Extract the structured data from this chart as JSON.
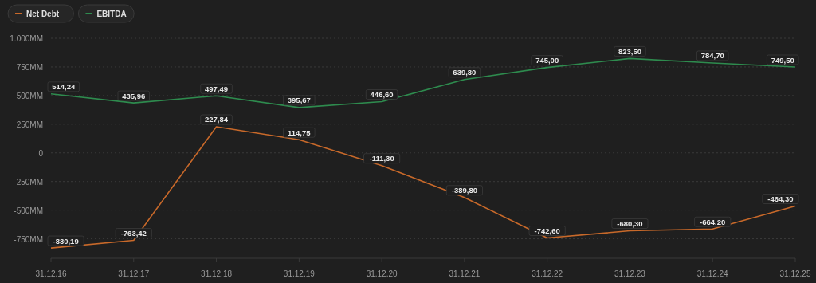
{
  "chart_data": {
    "type": "line",
    "categories": [
      "31.12.16",
      "31.12.17",
      "31.12.18",
      "31.12.19",
      "31.12.20",
      "31.12.21",
      "31.12.22",
      "31.12.23",
      "31.12.24",
      "31.12.25"
    ],
    "series": [
      {
        "name": "Net Debt",
        "color": "#c8692a",
        "values": [
          -830.19,
          -763.42,
          227.84,
          114.75,
          -111.3,
          -389.8,
          -742.6,
          -680.3,
          -664.2,
          -464.3
        ],
        "value_labels": [
          "-830,19",
          "-763,42",
          "227,84",
          "114,75",
          "-111,30",
          "-389,80",
          "-742,60",
          "-680,30",
          "-664,20",
          "-464,30"
        ]
      },
      {
        "name": "EBITDA",
        "color": "#2e8b4e",
        "values": [
          514.24,
          435.96,
          497.49,
          395.67,
          446.6,
          639.8,
          745,
          823.5,
          784.7,
          749.5
        ],
        "value_labels": [
          "514,24",
          "435,96",
          "497,49",
          "395,67",
          "446,60",
          "639,80",
          "745,00",
          "823,50",
          "784,70",
          "749,50"
        ]
      }
    ],
    "ylim": [
      -920,
      1000
    ],
    "yticks": [
      {
        "value": 1000,
        "label": "1.000MM"
      },
      {
        "value": 750,
        "label": "750MM"
      },
      {
        "value": 500,
        "label": "500MM"
      },
      {
        "value": 250,
        "label": "250MM"
      },
      0,
      {
        "value": -250,
        "label": "-250MM"
      },
      {
        "value": -500,
        "label": "-500MM"
      },
      {
        "value": -750,
        "label": "-750MM"
      }
    ],
    "grid": "y",
    "legend": "top left",
    "marker": "none",
    "line_style": "solid"
  }
}
